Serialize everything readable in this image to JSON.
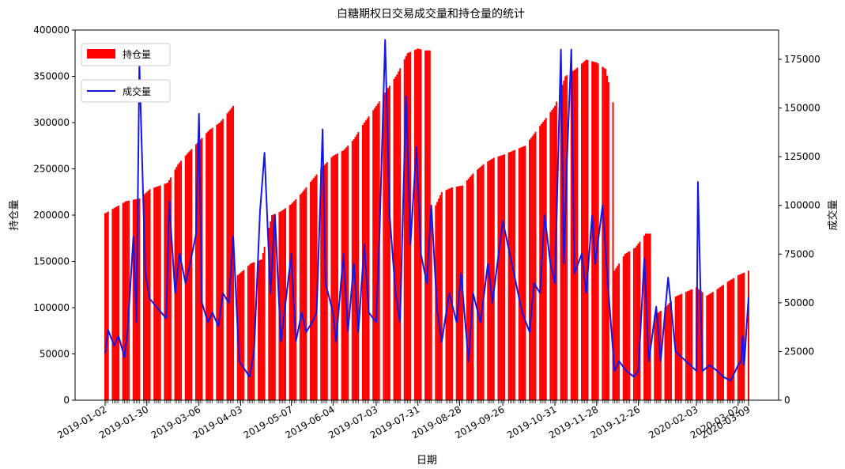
{
  "chart_data": {
    "type": "bar",
    "title": "白糖期权日交易成交量和持仓量的统计",
    "xlabel": "日期",
    "ylabel_left": "持仓量",
    "ylabel_right": "成交量",
    "left_ylim": [
      0,
      400000
    ],
    "right_ylim": [
      0,
      190000
    ],
    "left_yticks": [
      "0",
      "50000",
      "100000",
      "150000",
      "200000",
      "250000",
      "300000",
      "350000",
      "400000"
    ],
    "right_yticks": [
      "0",
      "25000",
      "50000",
      "75000",
      "100000",
      "125000",
      "150000",
      "175000"
    ],
    "date_range": [
      "2019-01-02",
      "2020-03-09"
    ],
    "x_tick_labels": [
      "2019-01-02",
      "2019-01-30",
      "2019-03-06",
      "2019-04-03",
      "2019-05-07",
      "2019-06-04",
      "2019-07-03",
      "2019-07-31",
      "2019-08-28",
      "2019-09-26",
      "2019-10-31",
      "2019-11-28",
      "2019-12-26",
      "2020-02-03",
      "2020-03-02",
      "2020-03-09"
    ],
    "legend": "upper left",
    "grid": false,
    "series": [
      {
        "name": "持仓量",
        "type": "bar",
        "axis": "left",
        "color": "#ff0000",
        "points": [
          [
            "2019-01-02",
            202000
          ],
          [
            "2019-01-16",
            215000
          ],
          [
            "2019-01-25",
            218000
          ],
          [
            "2019-01-30",
            225000
          ],
          [
            "2019-02-01",
            228000
          ],
          [
            "2019-02-13",
            235000
          ],
          [
            "2019-02-20",
            255000
          ],
          [
            "2019-02-27",
            268000
          ],
          [
            "2019-03-06",
            280000
          ],
          [
            "2019-03-13",
            292000
          ],
          [
            "2019-03-20",
            300000
          ],
          [
            "2019-03-29",
            318000
          ],
          [
            "2019-04-01",
            135000
          ],
          [
            "2019-04-10",
            148000
          ],
          [
            "2019-04-17",
            152000
          ],
          [
            "2019-04-24",
            200000
          ],
          [
            "2019-04-30",
            204000
          ],
          [
            "2019-05-07",
            212000
          ],
          [
            "2019-05-14",
            224000
          ],
          [
            "2019-05-21",
            238000
          ],
          [
            "2019-05-28",
            252000
          ],
          [
            "2019-06-04",
            264000
          ],
          [
            "2019-06-11",
            270000
          ],
          [
            "2019-06-18",
            282000
          ],
          [
            "2019-06-25",
            300000
          ],
          [
            "2019-07-03",
            318000
          ],
          [
            "2019-07-10",
            335000
          ],
          [
            "2019-07-17",
            352000
          ],
          [
            "2019-07-24",
            375000
          ],
          [
            "2019-07-31",
            380000
          ],
          [
            "2019-08-05",
            378000
          ],
          [
            "2019-08-09",
            200000
          ],
          [
            "2019-08-16",
            225000
          ],
          [
            "2019-08-23",
            230000
          ],
          [
            "2019-08-30",
            232000
          ],
          [
            "2019-09-06",
            245000
          ],
          [
            "2019-09-13",
            255000
          ],
          [
            "2019-09-20",
            262000
          ],
          [
            "2019-09-26",
            265000
          ],
          [
            "2019-10-11",
            275000
          ],
          [
            "2019-10-18",
            290000
          ],
          [
            "2019-10-25",
            305000
          ],
          [
            "2019-10-31",
            318000
          ],
          [
            "2019-11-07",
            350000
          ],
          [
            "2019-11-14",
            358000
          ],
          [
            "2019-11-21",
            368000
          ],
          [
            "2019-11-28",
            365000
          ],
          [
            "2019-12-04",
            358000
          ],
          [
            "2019-12-09",
            322000
          ],
          [
            "2019-12-10",
            140000
          ],
          [
            "2019-12-17",
            158000
          ],
          [
            "2019-12-24",
            165000
          ],
          [
            "2019-12-31",
            180000
          ],
          [
            "2020-01-06",
            92000
          ],
          [
            "2020-01-13",
            100000
          ],
          [
            "2020-01-20",
            112000
          ],
          [
            "2020-02-03",
            122000
          ],
          [
            "2020-02-10",
            113000
          ],
          [
            "2020-02-17",
            120000
          ],
          [
            "2020-02-24",
            128000
          ],
          [
            "2020-03-02",
            135000
          ],
          [
            "2020-03-09",
            140000
          ]
        ]
      },
      {
        "name": "成交量",
        "type": "line",
        "axis": "right",
        "color": "#1515e6",
        "points": [
          [
            "2019-01-02",
            24000
          ],
          [
            "2019-01-04",
            36000
          ],
          [
            "2019-01-08",
            28000
          ],
          [
            "2019-01-11",
            33000
          ],
          [
            "2019-01-15",
            22000
          ],
          [
            "2019-01-17",
            35000
          ],
          [
            "2019-01-21",
            84000
          ],
          [
            "2019-01-23",
            40000
          ],
          [
            "2019-01-25",
            173000
          ],
          [
            "2019-01-29",
            65000
          ],
          [
            "2019-02-01",
            52000
          ],
          [
            "2019-02-12",
            42000
          ],
          [
            "2019-02-14",
            102000
          ],
          [
            "2019-02-18",
            55000
          ],
          [
            "2019-02-21",
            75000
          ],
          [
            "2019-02-25",
            60000
          ],
          [
            "2019-02-28",
            70000
          ],
          [
            "2019-03-04",
            85000
          ],
          [
            "2019-03-06",
            147000
          ],
          [
            "2019-03-08",
            50000
          ],
          [
            "2019-03-12",
            40000
          ],
          [
            "2019-03-15",
            45000
          ],
          [
            "2019-03-19",
            38000
          ],
          [
            "2019-03-22",
            55000
          ],
          [
            "2019-03-26",
            50000
          ],
          [
            "2019-03-29",
            84000
          ],
          [
            "2019-04-02",
            20000
          ],
          [
            "2019-04-09",
            12000
          ],
          [
            "2019-04-12",
            25000
          ],
          [
            "2019-04-16",
            97000
          ],
          [
            "2019-04-19",
            127000
          ],
          [
            "2019-04-23",
            55000
          ],
          [
            "2019-04-26",
            95000
          ],
          [
            "2019-04-30",
            30000
          ],
          [
            "2019-05-07",
            75000
          ],
          [
            "2019-05-10",
            30000
          ],
          [
            "2019-05-14",
            45000
          ],
          [
            "2019-05-17",
            35000
          ],
          [
            "2019-05-21",
            40000
          ],
          [
            "2019-05-24",
            45000
          ],
          [
            "2019-05-28",
            139000
          ],
          [
            "2019-05-30",
            60000
          ],
          [
            "2019-06-04",
            45000
          ],
          [
            "2019-06-06",
            30000
          ],
          [
            "2019-06-11",
            75000
          ],
          [
            "2019-06-14",
            35000
          ],
          [
            "2019-06-18",
            70000
          ],
          [
            "2019-06-21",
            35000
          ],
          [
            "2019-06-25",
            80000
          ],
          [
            "2019-06-28",
            45000
          ],
          [
            "2019-07-03",
            40000
          ],
          [
            "2019-07-05",
            80000
          ],
          [
            "2019-07-09",
            185000
          ],
          [
            "2019-07-12",
            95000
          ],
          [
            "2019-07-16",
            55000
          ],
          [
            "2019-07-19",
            40000
          ],
          [
            "2019-07-23",
            156000
          ],
          [
            "2019-07-26",
            80000
          ],
          [
            "2019-07-30",
            130000
          ],
          [
            "2019-08-02",
            75000
          ],
          [
            "2019-08-06",
            60000
          ],
          [
            "2019-08-09",
            100000
          ],
          [
            "2019-08-13",
            45000
          ],
          [
            "2019-08-16",
            30000
          ],
          [
            "2019-08-21",
            55000
          ],
          [
            "2019-08-26",
            40000
          ],
          [
            "2019-08-29",
            65000
          ],
          [
            "2019-09-03",
            20000
          ],
          [
            "2019-09-06",
            55000
          ],
          [
            "2019-09-11",
            40000
          ],
          [
            "2019-09-16",
            70000
          ],
          [
            "2019-09-19",
            50000
          ],
          [
            "2019-09-24",
            80000
          ],
          [
            "2019-09-26",
            92000
          ],
          [
            "2019-10-09",
            45000
          ],
          [
            "2019-10-14",
            35000
          ],
          [
            "2019-10-17",
            60000
          ],
          [
            "2019-10-21",
            55000
          ],
          [
            "2019-10-24",
            95000
          ],
          [
            "2019-10-28",
            70000
          ],
          [
            "2019-10-31",
            60000
          ],
          [
            "2019-11-04",
            180000
          ],
          [
            "2019-11-06",
            70000
          ],
          [
            "2019-11-08",
            122000
          ],
          [
            "2019-11-11",
            180000
          ],
          [
            "2019-11-13",
            65000
          ],
          [
            "2019-11-18",
            75000
          ],
          [
            "2019-11-21",
            55000
          ],
          [
            "2019-11-25",
            95000
          ],
          [
            "2019-11-27",
            70000
          ],
          [
            "2019-12-02",
            100000
          ],
          [
            "2019-12-05",
            65000
          ],
          [
            "2019-12-10",
            15000
          ],
          [
            "2019-12-13",
            20000
          ],
          [
            "2019-12-18",
            15000
          ],
          [
            "2019-12-23",
            12000
          ],
          [
            "2019-12-26",
            15000
          ],
          [
            "2019-12-30",
            73000
          ],
          [
            "2020-01-02",
            20000
          ],
          [
            "2020-01-07",
            48000
          ],
          [
            "2020-01-10",
            20000
          ],
          [
            "2020-01-15",
            63000
          ],
          [
            "2020-01-20",
            25000
          ],
          [
            "2020-02-03",
            15000
          ],
          [
            "2020-02-04",
            112000
          ],
          [
            "2020-02-07",
            15000
          ],
          [
            "2020-02-12",
            18000
          ],
          [
            "2020-02-17",
            15000
          ],
          [
            "2020-02-21",
            12000
          ],
          [
            "2020-02-26",
            10000
          ],
          [
            "2020-03-02",
            18000
          ],
          [
            "2020-03-04",
            20000
          ],
          [
            "2020-03-05",
            33000
          ],
          [
            "2020-03-06",
            18000
          ],
          [
            "2020-03-09",
            53000
          ]
        ]
      }
    ]
  }
}
